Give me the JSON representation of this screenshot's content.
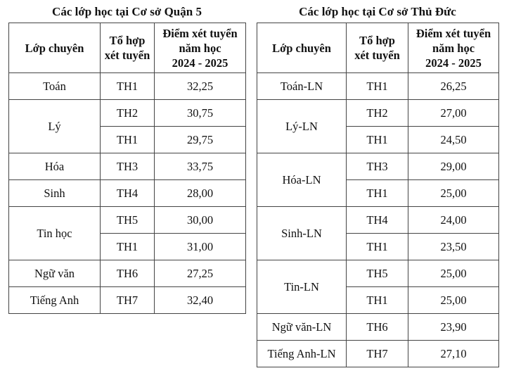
{
  "left": {
    "title": "Các lớp học tại Cơ sở Quận 5",
    "headers": {
      "class": "Lớp chuyên",
      "combo_1": "Tổ hợp",
      "combo_2": "xét tuyển",
      "score_1": "Điểm xét tuyển",
      "score_2": "năm học",
      "score_3": "2024 - 2025"
    },
    "groups": [
      {
        "name": "Toán",
        "rows": [
          {
            "combo": "TH1",
            "score": "32,25"
          }
        ]
      },
      {
        "name": "Lý",
        "rows": [
          {
            "combo": "TH2",
            "score": "30,75"
          },
          {
            "combo": "TH1",
            "score": "29,75"
          }
        ]
      },
      {
        "name": "Hóa",
        "rows": [
          {
            "combo": "TH3",
            "score": "33,75"
          }
        ]
      },
      {
        "name": "Sinh",
        "rows": [
          {
            "combo": "TH4",
            "score": "28,00"
          }
        ]
      },
      {
        "name": "Tin học",
        "rows": [
          {
            "combo": "TH5",
            "score": "30,00"
          },
          {
            "combo": "TH1",
            "score": "31,00"
          }
        ]
      },
      {
        "name": "Ngữ văn",
        "rows": [
          {
            "combo": "TH6",
            "score": "27,25"
          }
        ]
      },
      {
        "name": "Tiếng Anh",
        "rows": [
          {
            "combo": "TH7",
            "score": "32,40"
          }
        ]
      }
    ]
  },
  "right": {
    "title": "Các lớp học tại Cơ sở Thủ Đức",
    "headers": {
      "class": "Lớp chuyên",
      "combo_1": "Tổ hợp",
      "combo_2": "xét tuyển",
      "score_1": "Điểm xét tuyển",
      "score_2": "năm học",
      "score_3": "2024 - 2025"
    },
    "groups": [
      {
        "name": "Toán-LN",
        "rows": [
          {
            "combo": "TH1",
            "score": "26,25"
          }
        ]
      },
      {
        "name": "Lý-LN",
        "rows": [
          {
            "combo": "TH2",
            "score": "27,00"
          },
          {
            "combo": "TH1",
            "score": "24,50"
          }
        ]
      },
      {
        "name": "Hóa-LN",
        "rows": [
          {
            "combo": "TH3",
            "score": "29,00"
          },
          {
            "combo": "TH1",
            "score": "25,00"
          }
        ]
      },
      {
        "name": "Sinh-LN",
        "rows": [
          {
            "combo": "TH4",
            "score": "24,00"
          },
          {
            "combo": "TH1",
            "score": "23,50"
          }
        ]
      },
      {
        "name": "Tin-LN",
        "rows": [
          {
            "combo": "TH5",
            "score": "25,00"
          },
          {
            "combo": "TH1",
            "score": "25,00"
          }
        ]
      },
      {
        "name": "Ngữ văn-LN",
        "rows": [
          {
            "combo": "TH6",
            "score": "23,90"
          }
        ]
      },
      {
        "name": "Tiếng Anh-LN",
        "rows": [
          {
            "combo": "TH7",
            "score": "27,10"
          }
        ]
      }
    ]
  }
}
